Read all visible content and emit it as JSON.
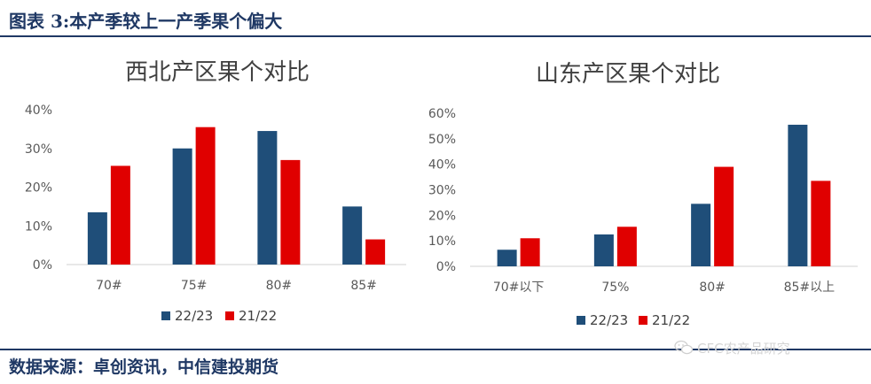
{
  "header": {
    "title": "图表 3:本产季较上一产季果个偏大"
  },
  "footer": {
    "source": "数据来源：卓创资讯，中信建投期货"
  },
  "watermark": {
    "text": "CFC农产品研究",
    "icon": "wechat-icon"
  },
  "colors": {
    "series_a": "#1f4e79",
    "series_b": "#e00000",
    "header": "#1f3864"
  },
  "chart_data": [
    {
      "type": "bar",
      "title": "西北产区果个对比",
      "categories": [
        "70#",
        "75#",
        "80#",
        "85#"
      ],
      "series": [
        {
          "name": "22/23",
          "values": [
            13.5,
            30,
            34.5,
            15
          ]
        },
        {
          "name": "21/22",
          "values": [
            25.5,
            35.5,
            27,
            6.5
          ]
        }
      ],
      "ylim": [
        0,
        40
      ],
      "yticks": [
        "0%",
        "10%",
        "20%",
        "30%",
        "40%"
      ],
      "ytick_values": [
        0,
        10,
        20,
        30,
        40
      ],
      "legend": "bottom",
      "grid": false
    },
    {
      "type": "bar",
      "title": "山东产区果个对比",
      "categories": [
        "70#以下",
        "75%",
        "80#",
        "85#以上"
      ],
      "series": [
        {
          "name": "22/23",
          "values": [
            6.5,
            12.5,
            24.5,
            55.5
          ]
        },
        {
          "name": "21/22",
          "values": [
            11,
            15.5,
            39,
            33.5
          ]
        }
      ],
      "ylim": [
        0,
        60
      ],
      "yticks": [
        "0%",
        "10%",
        "20%",
        "30%",
        "40%",
        "50%",
        "60%"
      ],
      "ytick_values": [
        0,
        10,
        20,
        30,
        40,
        50,
        60
      ],
      "legend": "bottom",
      "grid": false
    }
  ]
}
